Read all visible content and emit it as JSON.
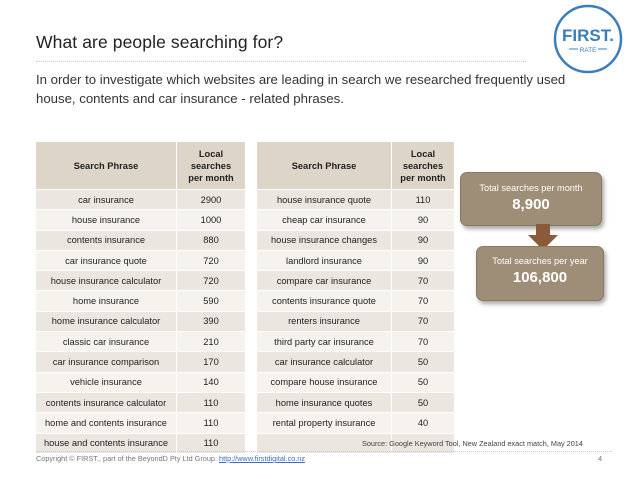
{
  "slide": {
    "title": "What are people searching for?",
    "intro": "In order to investigate which websites are leading in search we researched frequently used house, contents and car insurance - related phrases.",
    "logo": {
      "text": "FIRST.",
      "subtext": "RATE",
      "icon": "first-rate-logo"
    }
  },
  "table1": {
    "headers": [
      "Search Phrase",
      "Local searches per month"
    ],
    "rows": [
      [
        "car insurance",
        "2900"
      ],
      [
        "house insurance",
        "1000"
      ],
      [
        "contents insurance",
        "880"
      ],
      [
        "car insurance quote",
        "720"
      ],
      [
        "house insurance calculator",
        "720"
      ],
      [
        "home insurance",
        "590"
      ],
      [
        "home insurance calculator",
        "390"
      ],
      [
        "classic car insurance",
        "210"
      ],
      [
        "car insurance comparison",
        "170"
      ],
      [
        "vehicle insurance",
        "140"
      ],
      [
        "contents insurance calculator",
        "110"
      ],
      [
        "home and contents insurance",
        "110"
      ],
      [
        "house and contents insurance",
        "110"
      ]
    ]
  },
  "table2": {
    "headers": [
      "Search Phrase",
      "Local searches per month"
    ],
    "rows": [
      [
        "house insurance quote",
        "110"
      ],
      [
        "cheap car insurance",
        "90"
      ],
      [
        "house insurance changes",
        "90"
      ],
      [
        "landlord insurance",
        "90"
      ],
      [
        "compare car insurance",
        "70"
      ],
      [
        "contents insurance quote",
        "70"
      ],
      [
        "renters insurance",
        "70"
      ],
      [
        "third party car insurance",
        "70"
      ],
      [
        "car insurance calculator",
        "50"
      ],
      [
        "compare house insurance",
        "50"
      ],
      [
        "home insurance quotes",
        "50"
      ],
      [
        "rental property insurance",
        "40"
      ],
      [
        "",
        ""
      ]
    ]
  },
  "totals": {
    "month_label": "Total searches per month",
    "month_value": "8,900",
    "year_label": "Total searches per year",
    "year_value": "106,800",
    "arrow_icon": "arrow-down-icon"
  },
  "source": "Source: Google Keyword Tool, New Zealand exact match, May 2014",
  "footer": {
    "copyright": "Copyright © FIRST., part of the BeyondD Pty Ltd Group.",
    "link": "http://www.firstdigital.co.nz",
    "page": "4"
  },
  "colors": {
    "header_bg": "#ddd5c7",
    "row_odd": "#ebe6df",
    "row_even": "#f6f3ef",
    "box_bg": "#9f8e77",
    "arrow": "#8a5a3a",
    "logo_blue": "#3b7dc1"
  }
}
